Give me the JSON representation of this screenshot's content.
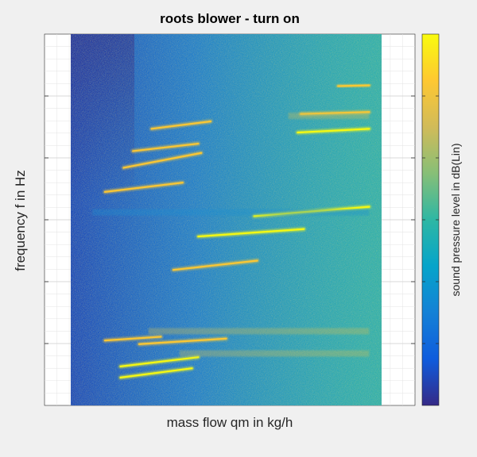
{
  "chart_data": {
    "type": "heatmap",
    "title": "roots blower - turn on",
    "xlabel": "mass flow qm in kg/h",
    "ylabel": "frequency f in Hz",
    "colorbar_label": "sound pressure level in dB(Lin)",
    "colormap": "parula",
    "grid": true,
    "colormap_colors": [
      "#352a87",
      "#0f5cdd",
      "#1481d6",
      "#06a4ca",
      "#2eb7a4",
      "#87bf77",
      "#d1bb59",
      "#fec832",
      "#f9fb0e"
    ],
    "background": "#2fb0a8",
    "features": [
      {
        "kind": "ridge",
        "x0": 0.11,
        "y0": 0.175,
        "x1": 0.29,
        "y1": 0.185,
        "intensity": 0.8
      },
      {
        "kind": "ridge",
        "x0": 0.16,
        "y0": 0.075,
        "x1": 0.39,
        "y1": 0.1,
        "intensity": 0.9
      },
      {
        "kind": "ridge",
        "x0": 0.16,
        "y0": 0.105,
        "x1": 0.41,
        "y1": 0.13,
        "intensity": 0.85
      },
      {
        "kind": "ridge",
        "x0": 0.22,
        "y0": 0.165,
        "x1": 0.5,
        "y1": 0.18,
        "intensity": 0.5
      },
      {
        "kind": "ridge",
        "x0": 0.33,
        "y0": 0.365,
        "x1": 0.6,
        "y1": 0.39,
        "intensity": 0.7
      },
      {
        "kind": "ridge",
        "x0": 0.41,
        "y0": 0.455,
        "x1": 0.75,
        "y1": 0.475,
        "intensity": 0.85
      },
      {
        "kind": "ridge",
        "x0": 0.59,
        "y0": 0.51,
        "x1": 0.96,
        "y1": 0.535,
        "intensity": 1.0
      },
      {
        "kind": "ridge",
        "x0": 0.11,
        "y0": 0.575,
        "x1": 0.36,
        "y1": 0.6,
        "intensity": 0.7
      },
      {
        "kind": "ridge",
        "x0": 0.17,
        "y0": 0.64,
        "x1": 0.42,
        "y1": 0.68,
        "intensity": 0.8
      },
      {
        "kind": "ridge",
        "x0": 0.2,
        "y0": 0.685,
        "x1": 0.41,
        "y1": 0.705,
        "intensity": 0.5
      },
      {
        "kind": "ridge",
        "x0": 0.26,
        "y0": 0.745,
        "x1": 0.45,
        "y1": 0.765,
        "intensity": 0.5
      },
      {
        "kind": "ridge",
        "x0": 0.73,
        "y0": 0.735,
        "x1": 0.96,
        "y1": 0.745,
        "intensity": 0.95
      },
      {
        "kind": "ridge",
        "x0": 0.74,
        "y0": 0.785,
        "x1": 0.96,
        "y1": 0.79,
        "intensity": 0.55
      },
      {
        "kind": "ridge",
        "x0": 0.86,
        "y0": 0.86,
        "x1": 0.96,
        "y1": 0.862,
        "intensity": 0.8
      },
      {
        "kind": "band",
        "y": 0.52,
        "x0": 0.07,
        "x1": 0.96,
        "intensity": 0.2
      },
      {
        "kind": "band",
        "y": 0.2,
        "x0": 0.25,
        "x1": 0.96,
        "intensity": 0.3
      },
      {
        "kind": "band",
        "y": 0.78,
        "x0": 0.7,
        "x1": 0.96,
        "intensity": 0.3
      },
      {
        "kind": "band",
        "y": 0.14,
        "x0": 0.35,
        "x1": 0.96,
        "intensity": 0.3
      },
      {
        "kind": "low_region",
        "x0": 0.07,
        "x1": 0.18,
        "intensity": 0.6
      }
    ]
  }
}
